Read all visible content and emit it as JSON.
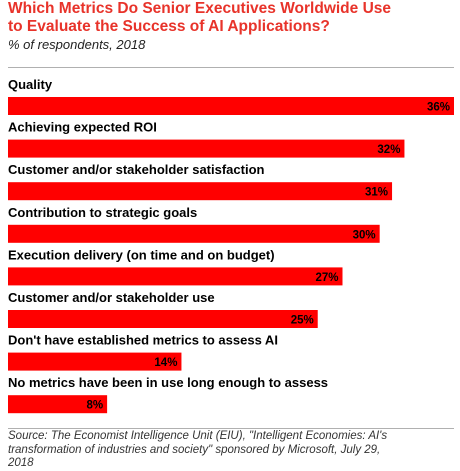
{
  "header": {
    "title_line1": "Which Metrics Do Senior Executives Worldwide Use",
    "title_line2": "to Evaluate the Success of AI Applications?",
    "subtitle": "% of respondents, 2018"
  },
  "footer": {
    "source_line1": "Source: The Economist Intelligence Unit (EIU), \"Intelligent Economies: AI's",
    "source_line2": "transformation of industries and society\" sponsored by Microsoft, July 29,",
    "source_line3": "2018"
  },
  "colors": {
    "bar": "#ff0000",
    "title": "#e8332a"
  },
  "chart_data": {
    "type": "bar",
    "orientation": "horizontal",
    "title": "Which Metrics Do Senior Executives Worldwide Use to Evaluate the Success of AI Applications?",
    "subtitle": "% of respondents, 2018",
    "categories": [
      "Quality",
      "Achieving expected ROI",
      "Customer and/or stakeholder satisfaction",
      "Contribution to strategic goals",
      "Execution delivery (on time and on budget)",
      "Customer and/or stakeholder use",
      "Don't have established metrics to assess AI",
      "No metrics have been in use long enough to assess"
    ],
    "values": [
      36,
      32,
      31,
      30,
      27,
      25,
      14,
      8
    ],
    "value_labels": [
      "36%",
      "32%",
      "31%",
      "30%",
      "27%",
      "25%",
      "14%",
      "8%"
    ],
    "xlabel": "",
    "ylabel": "",
    "xlim": [
      0,
      36
    ],
    "grid": false,
    "legend": "none"
  }
}
